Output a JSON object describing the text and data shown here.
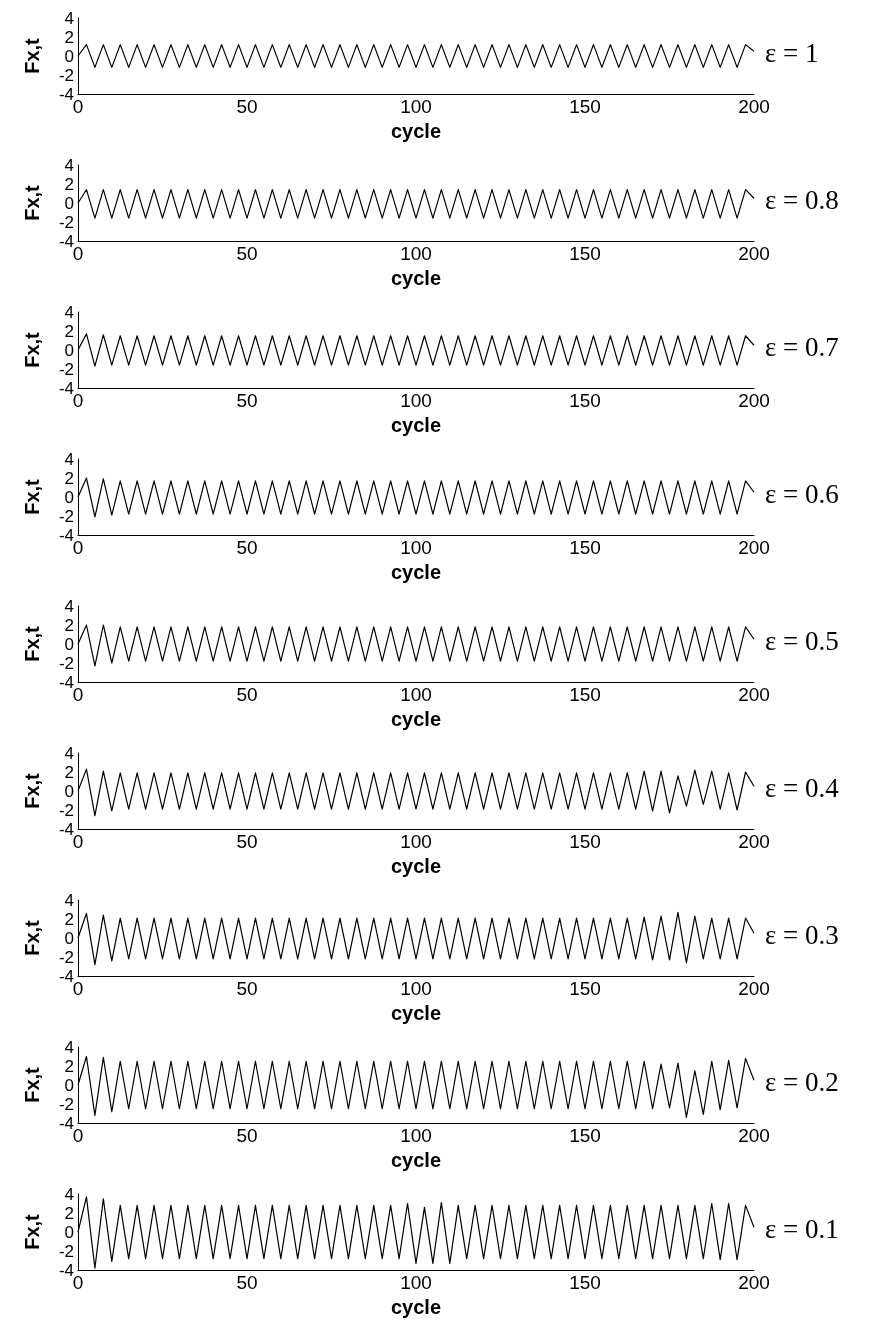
{
  "chart_data": [
    {
      "type": "line",
      "title": "ε = 1",
      "xlabel": "cycle",
      "ylabel": "Fx,t",
      "color": "#000000",
      "marker": "none",
      "xlim": [
        0,
        200
      ],
      "xticks": [
        0,
        50,
        100,
        150,
        200
      ],
      "ylim": [
        -4,
        4
      ],
      "yticks": [
        -4,
        -2,
        0,
        2,
        4
      ],
      "x": [
        0,
        2.5,
        5,
        7.5,
        10,
        12.5,
        15,
        17.5,
        20,
        22.5,
        25,
        27.5,
        30,
        32.5,
        35,
        37.5,
        40,
        42.5,
        45,
        47.5,
        50,
        52.5,
        55,
        57.5,
        60,
        62.5,
        65,
        67.5,
        70,
        72.5,
        75,
        77.5,
        80,
        82.5,
        85,
        87.5,
        90,
        92.5,
        95,
        97.5,
        100,
        102.5,
        105,
        107.5,
        110,
        112.5,
        115,
        117.5,
        120,
        122.5,
        125,
        127.5,
        130,
        132.5,
        135,
        137.5,
        140,
        142.5,
        145,
        147.5,
        150,
        152.5,
        155,
        157.5,
        160,
        162.5,
        165,
        167.5,
        170,
        172.5,
        175,
        177.5,
        180,
        182.5,
        185,
        187.5,
        190,
        192.5,
        195,
        197.5,
        200
      ],
      "values": [
        0,
        1.2,
        -1.2,
        1.2,
        -1.2,
        1.2,
        -1.2,
        1.2,
        -1.2,
        1.2,
        -1.2,
        1.2,
        -1.2,
        1.2,
        -1.2,
        1.2,
        -1.2,
        1.2,
        -1.2,
        1.2,
        -1.2,
        1.2,
        -1.2,
        1.2,
        -1.2,
        1.2,
        -1.2,
        1.2,
        -1.2,
        1.2,
        -1.2,
        1.2,
        -1.2,
        1.2,
        -1.2,
        1.2,
        -1.2,
        1.2,
        -1.2,
        1.2,
        -1.2,
        1.2,
        -1.2,
        1.2,
        -1.2,
        1.2,
        -1.2,
        1.2,
        -1.2,
        1.2,
        -1.2,
        1.2,
        -1.2,
        1.2,
        -1.2,
        1.2,
        -1.2,
        1.2,
        -1.2,
        1.2,
        -1.2,
        1.2,
        -1.2,
        1.2,
        -1.2,
        1.2,
        -1.2,
        1.2,
        -1.2,
        1.2,
        -1.2,
        1.2,
        -1.2,
        1.2,
        -1.2,
        1.2,
        -1.2,
        1.2,
        -1.2,
        1.2,
        0.5
      ]
    },
    {
      "type": "line",
      "title": "ε = 0.8",
      "xlabel": "cycle",
      "ylabel": "Fx,t",
      "color": "#000000",
      "marker": "none",
      "xlim": [
        0,
        200
      ],
      "xticks": [
        0,
        50,
        100,
        150,
        200
      ],
      "ylim": [
        -4,
        4
      ],
      "yticks": [
        -4,
        -2,
        0,
        2,
        4
      ],
      "x": [
        0,
        2.5,
        5,
        7.5,
        10,
        12.5,
        15,
        17.5,
        20,
        22.5,
        25,
        27.5,
        30,
        32.5,
        35,
        37.5,
        40,
        42.5,
        45,
        47.5,
        50,
        52.5,
        55,
        57.5,
        60,
        62.5,
        65,
        67.5,
        70,
        72.5,
        75,
        77.5,
        80,
        82.5,
        85,
        87.5,
        90,
        92.5,
        95,
        97.5,
        100,
        102.5,
        105,
        107.5,
        110,
        112.5,
        115,
        117.5,
        120,
        122.5,
        125,
        127.5,
        130,
        132.5,
        135,
        137.5,
        140,
        142.5,
        145,
        147.5,
        150,
        152.5,
        155,
        157.5,
        160,
        162.5,
        165,
        167.5,
        170,
        172.5,
        175,
        177.5,
        180,
        182.5,
        185,
        187.5,
        190,
        192.5,
        195,
        197.5,
        200
      ],
      "values": [
        0,
        1.4,
        -1.6,
        1.4,
        -1.6,
        1.4,
        -1.6,
        1.4,
        -1.6,
        1.4,
        -1.6,
        1.4,
        -1.6,
        1.4,
        -1.6,
        1.4,
        -1.6,
        1.4,
        -1.6,
        1.4,
        -1.6,
        1.4,
        -1.6,
        1.4,
        -1.6,
        1.4,
        -1.6,
        1.4,
        -1.6,
        1.4,
        -1.6,
        1.4,
        -1.6,
        1.4,
        -1.6,
        1.4,
        -1.6,
        1.4,
        -1.6,
        1.4,
        -1.6,
        1.4,
        -1.6,
        1.4,
        -1.6,
        1.4,
        -1.6,
        1.4,
        -1.6,
        1.4,
        -1.6,
        1.4,
        -1.6,
        1.4,
        -1.6,
        1.4,
        -1.6,
        1.4,
        -1.6,
        1.4,
        -1.6,
        1.4,
        -1.6,
        1.4,
        -1.6,
        1.4,
        -1.6,
        1.4,
        -1.6,
        1.4,
        -1.6,
        1.4,
        -1.6,
        1.4,
        -1.6,
        1.4,
        -1.6,
        1.4,
        -1.6,
        1.4,
        0.5
      ]
    },
    {
      "type": "line",
      "title": "ε = 0.7",
      "xlabel": "cycle",
      "ylabel": "Fx,t",
      "color": "#000000",
      "marker": "none",
      "xlim": [
        0,
        200
      ],
      "xticks": [
        0,
        50,
        100,
        150,
        200
      ],
      "ylim": [
        -4,
        4
      ],
      "yticks": [
        -4,
        -2,
        0,
        2,
        4
      ],
      "x": [
        0,
        2.5,
        5,
        7.5,
        10,
        12.5,
        15,
        17.5,
        20,
        22.5,
        25,
        27.5,
        30,
        32.5,
        35,
        37.5,
        40,
        42.5,
        45,
        47.5,
        50,
        52.5,
        55,
        57.5,
        60,
        62.5,
        65,
        67.5,
        70,
        72.5,
        75,
        77.5,
        80,
        82.5,
        85,
        87.5,
        90,
        92.5,
        95,
        97.5,
        100,
        102.5,
        105,
        107.5,
        110,
        112.5,
        115,
        117.5,
        120,
        122.5,
        125,
        127.5,
        130,
        132.5,
        135,
        137.5,
        140,
        142.5,
        145,
        147.5,
        150,
        152.5,
        155,
        157.5,
        160,
        162.5,
        165,
        167.5,
        170,
        172.5,
        175,
        177.5,
        180,
        182.5,
        185,
        187.5,
        190,
        192.5,
        195,
        197.5,
        200
      ],
      "values": [
        0,
        1.7,
        -1.7,
        1.6,
        -1.6,
        1.5,
        -1.6,
        1.5,
        -1.6,
        1.5,
        -1.6,
        1.5,
        -1.6,
        1.5,
        -1.6,
        1.5,
        -1.6,
        1.5,
        -1.6,
        1.5,
        -1.6,
        1.5,
        -1.6,
        1.5,
        -1.6,
        1.5,
        -1.6,
        1.5,
        -1.6,
        1.5,
        -1.6,
        1.5,
        -1.6,
        1.5,
        -1.6,
        1.5,
        -1.6,
        1.5,
        -1.6,
        1.5,
        -1.6,
        1.5,
        -1.6,
        1.5,
        -1.6,
        1.5,
        -1.6,
        1.5,
        -1.6,
        1.5,
        -1.6,
        1.5,
        -1.6,
        1.5,
        -1.6,
        1.5,
        -1.6,
        1.5,
        -1.6,
        1.5,
        -1.6,
        1.5,
        -1.6,
        1.5,
        -1.6,
        1.5,
        -1.6,
        1.5,
        -1.6,
        1.5,
        -1.6,
        1.5,
        -1.6,
        1.5,
        -1.6,
        1.5,
        -1.6,
        1.5,
        -1.6,
        1.5,
        0.5
      ]
    },
    {
      "type": "line",
      "title": "ε = 0.6",
      "xlabel": "cycle",
      "ylabel": "Fx,t",
      "color": "#000000",
      "marker": "none",
      "xlim": [
        0,
        200
      ],
      "xticks": [
        0,
        50,
        100,
        150,
        200
      ],
      "ylim": [
        -4,
        4
      ],
      "yticks": [
        -4,
        -2,
        0,
        2,
        4
      ],
      "x": [
        0,
        2.5,
        5,
        7.5,
        10,
        12.5,
        15,
        17.5,
        20,
        22.5,
        25,
        27.5,
        30,
        32.5,
        35,
        37.5,
        40,
        42.5,
        45,
        47.5,
        50,
        52.5,
        55,
        57.5,
        60,
        62.5,
        65,
        67.5,
        70,
        72.5,
        75,
        77.5,
        80,
        82.5,
        85,
        87.5,
        90,
        92.5,
        95,
        97.5,
        100,
        102.5,
        105,
        107.5,
        110,
        112.5,
        115,
        117.5,
        120,
        122.5,
        125,
        127.5,
        130,
        132.5,
        135,
        137.5,
        140,
        142.5,
        145,
        147.5,
        150,
        152.5,
        155,
        157.5,
        160,
        162.5,
        165,
        167.5,
        170,
        172.5,
        175,
        177.5,
        180,
        182.5,
        185,
        187.5,
        190,
        192.5,
        195,
        197.5,
        200
      ],
      "values": [
        0,
        2,
        -2.1,
        1.9,
        -1.9,
        1.7,
        -1.8,
        1.7,
        -1.8,
        1.7,
        -1.8,
        1.7,
        -1.8,
        1.7,
        -1.8,
        1.7,
        -1.8,
        1.7,
        -1.8,
        1.7,
        -1.8,
        1.7,
        -1.8,
        1.7,
        -1.8,
        1.7,
        -1.8,
        1.7,
        -1.8,
        1.7,
        -1.8,
        1.7,
        -1.8,
        1.7,
        -1.8,
        1.7,
        -1.8,
        1.7,
        -1.8,
        1.7,
        -1.8,
        1.7,
        -1.8,
        1.7,
        -1.8,
        1.7,
        -1.8,
        1.7,
        -1.8,
        1.7,
        -1.8,
        1.7,
        -1.8,
        1.7,
        -1.8,
        1.7,
        -1.8,
        1.7,
        -1.8,
        1.7,
        -1.8,
        1.7,
        -1.8,
        1.7,
        -1.8,
        1.7,
        -1.8,
        1.7,
        -1.8,
        1.7,
        -1.8,
        1.7,
        -1.8,
        1.7,
        -1.8,
        1.7,
        -1.8,
        1.7,
        -1.8,
        1.7,
        0.5
      ]
    },
    {
      "type": "line",
      "title": "ε = 0.5",
      "xlabel": "cycle",
      "ylabel": "Fx,t",
      "color": "#000000",
      "marker": "none",
      "xlim": [
        0,
        200
      ],
      "xticks": [
        0,
        50,
        100,
        150,
        200
      ],
      "ylim": [
        -4,
        4
      ],
      "yticks": [
        -4,
        -2,
        0,
        2,
        4
      ],
      "x": [
        0,
        2.5,
        5,
        7.5,
        10,
        12.5,
        15,
        17.5,
        20,
        22.5,
        25,
        27.5,
        30,
        32.5,
        35,
        37.5,
        40,
        42.5,
        45,
        47.5,
        50,
        52.5,
        55,
        57.5,
        60,
        62.5,
        65,
        67.5,
        70,
        72.5,
        75,
        77.5,
        80,
        82.5,
        85,
        87.5,
        90,
        92.5,
        95,
        97.5,
        100,
        102.5,
        105,
        107.5,
        110,
        112.5,
        115,
        117.5,
        120,
        122.5,
        125,
        127.5,
        130,
        132.5,
        135,
        137.5,
        140,
        142.5,
        145,
        147.5,
        150,
        152.5,
        155,
        157.5,
        160,
        162.5,
        165,
        167.5,
        170,
        172.5,
        175,
        177.5,
        180,
        182.5,
        185,
        187.5,
        190,
        192.5,
        195,
        197.5,
        200
      ],
      "values": [
        0,
        2,
        -2.3,
        2,
        -2,
        1.8,
        -1.8,
        1.8,
        -1.8,
        1.8,
        -1.8,
        1.8,
        -1.8,
        1.8,
        -1.8,
        1.8,
        -1.8,
        1.8,
        -1.8,
        1.8,
        -1.8,
        1.8,
        -1.8,
        1.8,
        -1.8,
        1.8,
        -1.8,
        1.8,
        -1.8,
        1.8,
        -1.8,
        1.8,
        -1.8,
        1.8,
        -1.8,
        1.8,
        -1.8,
        1.8,
        -1.8,
        1.8,
        -1.8,
        1.8,
        -1.8,
        1.8,
        -1.8,
        1.8,
        -1.8,
        1.8,
        -1.8,
        1.8,
        -1.8,
        1.8,
        -1.8,
        1.8,
        -1.8,
        1.8,
        -1.8,
        1.8,
        -1.8,
        1.8,
        -1.8,
        1.8,
        -1.8,
        1.8,
        -1.8,
        1.8,
        -1.8,
        1.8,
        -1.8,
        1.8,
        -1.8,
        1.8,
        -1.8,
        1.8,
        -1.8,
        1.8,
        -1.8,
        1.8,
        -1.8,
        1.8,
        0.5
      ]
    },
    {
      "type": "line",
      "title": "ε = 0.4",
      "xlabel": "cycle",
      "ylabel": "Fx,t",
      "color": "#000000",
      "marker": "none",
      "xlim": [
        0,
        200
      ],
      "xticks": [
        0,
        50,
        100,
        150,
        200
      ],
      "ylim": [
        -4,
        4
      ],
      "yticks": [
        -4,
        -2,
        0,
        2,
        4
      ],
      "x": [
        0,
        2.5,
        5,
        7.5,
        10,
        12.5,
        15,
        17.5,
        20,
        22.5,
        25,
        27.5,
        30,
        32.5,
        35,
        37.5,
        40,
        42.5,
        45,
        47.5,
        50,
        52.5,
        55,
        57.5,
        60,
        62.5,
        65,
        67.5,
        70,
        72.5,
        75,
        77.5,
        80,
        82.5,
        85,
        87.5,
        90,
        92.5,
        95,
        97.5,
        100,
        102.5,
        105,
        107.5,
        110,
        112.5,
        115,
        117.5,
        120,
        122.5,
        125,
        127.5,
        130,
        132.5,
        135,
        137.5,
        140,
        142.5,
        145,
        147.5,
        150,
        152.5,
        155,
        157.5,
        160,
        162.5,
        165,
        167.5,
        170,
        172.5,
        175,
        177.5,
        180,
        182.5,
        185,
        187.5,
        190,
        192.5,
        195,
        197.5,
        200
      ],
      "values": [
        0,
        2.3,
        -2.6,
        2.1,
        -2.1,
        1.9,
        -1.9,
        1.9,
        -1.9,
        1.9,
        -1.9,
        1.9,
        -1.9,
        1.9,
        -1.9,
        1.9,
        -1.9,
        1.9,
        -1.9,
        1.9,
        -1.9,
        1.9,
        -1.9,
        1.9,
        -1.9,
        1.9,
        -1.9,
        1.9,
        -1.9,
        1.9,
        -1.9,
        1.9,
        -1.9,
        1.9,
        -1.9,
        1.9,
        -1.9,
        1.9,
        -1.9,
        1.9,
        -1.9,
        1.9,
        -1.9,
        1.9,
        -1.9,
        1.9,
        -1.9,
        1.9,
        -1.9,
        1.9,
        -1.9,
        1.9,
        -1.9,
        1.9,
        -1.9,
        1.9,
        -1.9,
        1.9,
        -1.9,
        1.9,
        -1.9,
        1.9,
        -1.9,
        1.9,
        -1.9,
        1.9,
        -1.9,
        2.1,
        -2.1,
        2.1,
        -2.3,
        1.6,
        -1.6,
        2.2,
        -1.4,
        2.1,
        -1.9,
        1.9,
        -2,
        2,
        0.5
      ]
    },
    {
      "type": "line",
      "title": "ε = 0.3",
      "xlabel": "cycle",
      "ylabel": "Fx,t",
      "color": "#000000",
      "marker": "none",
      "xlim": [
        0,
        200
      ],
      "xticks": [
        0,
        50,
        100,
        150,
        200
      ],
      "ylim": [
        -4,
        4
      ],
      "yticks": [
        -4,
        -2,
        0,
        2,
        4
      ],
      "x": [
        0,
        2.5,
        5,
        7.5,
        10,
        12.5,
        15,
        17.5,
        20,
        22.5,
        25,
        27.5,
        30,
        32.5,
        35,
        37.5,
        40,
        42.5,
        45,
        47.5,
        50,
        52.5,
        55,
        57.5,
        60,
        62.5,
        65,
        67.5,
        70,
        72.5,
        75,
        77.5,
        80,
        82.5,
        85,
        87.5,
        90,
        92.5,
        95,
        97.5,
        100,
        102.5,
        105,
        107.5,
        110,
        112.5,
        115,
        117.5,
        120,
        122.5,
        125,
        127.5,
        130,
        132.5,
        135,
        137.5,
        140,
        142.5,
        145,
        147.5,
        150,
        152.5,
        155,
        157.5,
        160,
        162.5,
        165,
        167.5,
        170,
        172.5,
        175,
        177.5,
        180,
        182.5,
        185,
        187.5,
        190,
        192.5,
        195,
        197.5,
        200
      ],
      "values": [
        0,
        2.6,
        -2.8,
        2.4,
        -2.4,
        2.1,
        -2.2,
        2.1,
        -2.2,
        2.1,
        -2.2,
        2.1,
        -2.2,
        2.1,
        -2.2,
        2.1,
        -2.2,
        2.1,
        -2.2,
        2.1,
        -2.2,
        2.1,
        -2.2,
        2.1,
        -2.2,
        2.1,
        -2.2,
        2.1,
        -2.2,
        2.1,
        -2.2,
        2.1,
        -2.2,
        2.1,
        -2.2,
        2.1,
        -2.2,
        2.1,
        -2.2,
        2.1,
        -2.2,
        2.1,
        -2.2,
        2.1,
        -2.2,
        2.1,
        -2.2,
        2.1,
        -2.2,
        2.1,
        -2.2,
        2.1,
        -2.2,
        2.1,
        -2.2,
        2.1,
        -2.2,
        2.1,
        -2.2,
        2.1,
        -2.2,
        2.1,
        -2.2,
        2.1,
        -2.2,
        2.1,
        -2.2,
        2.2,
        -2.3,
        2.3,
        -2.3,
        2.7,
        -2.6,
        2.3,
        -2.2,
        2.1,
        -2.2,
        2.1,
        -2.2,
        2.1,
        0.5
      ]
    },
    {
      "type": "line",
      "title": "ε = 0.2",
      "xlabel": "cycle",
      "ylabel": "Fx,t",
      "color": "#000000",
      "marker": "none",
      "xlim": [
        0,
        200
      ],
      "xticks": [
        0,
        50,
        100,
        150,
        200
      ],
      "ylim": [
        -4,
        4
      ],
      "yticks": [
        -4,
        -2,
        0,
        2,
        4
      ],
      "x": [
        0,
        2.5,
        5,
        7.5,
        10,
        12.5,
        15,
        17.5,
        20,
        22.5,
        25,
        27.5,
        30,
        32.5,
        35,
        37.5,
        40,
        42.5,
        45,
        47.5,
        50,
        52.5,
        55,
        57.5,
        60,
        62.5,
        65,
        67.5,
        70,
        72.5,
        75,
        77.5,
        80,
        82.5,
        85,
        87.5,
        90,
        92.5,
        95,
        97.5,
        100,
        102.5,
        105,
        107.5,
        110,
        112.5,
        115,
        117.5,
        120,
        122.5,
        125,
        127.5,
        130,
        132.5,
        135,
        137.5,
        140,
        142.5,
        145,
        147.5,
        150,
        152.5,
        155,
        157.5,
        160,
        162.5,
        165,
        167.5,
        170,
        172.5,
        175,
        177.5,
        180,
        182.5,
        185,
        187.5,
        190,
        192.5,
        195,
        197.5,
        200
      ],
      "values": [
        0,
        3,
        -3.2,
        2.9,
        -2.8,
        2.5,
        -2.5,
        2.5,
        -2.5,
        2.5,
        -2.5,
        2.5,
        -2.5,
        2.5,
        -2.5,
        2.5,
        -2.5,
        2.5,
        -2.5,
        2.5,
        -2.5,
        2.5,
        -2.5,
        2.5,
        -2.5,
        2.5,
        -2.5,
        2.5,
        -2.5,
        2.5,
        -2.5,
        2.5,
        -2.5,
        2.5,
        -2.5,
        2.5,
        -2.5,
        2.5,
        -2.5,
        2.5,
        -2.5,
        2.5,
        -2.5,
        2.5,
        -2.5,
        2.5,
        -2.5,
        2.5,
        -2.5,
        2.5,
        -2.5,
        2.5,
        -2.5,
        2.5,
        -2.5,
        2.5,
        -2.5,
        2.5,
        -2.5,
        2.5,
        -2.5,
        2.5,
        -2.5,
        2.5,
        -2.5,
        2.5,
        -2.5,
        2.5,
        -2.5,
        2.2,
        -2.4,
        2.3,
        -3.4,
        1.5,
        -3.1,
        2.5,
        -2.6,
        2.6,
        -2.4,
        2.8,
        0.5
      ]
    },
    {
      "type": "line",
      "title": "ε = 0.1",
      "xlabel": "cycle",
      "ylabel": "Fx,t",
      "color": "#000000",
      "marker": "none",
      "xlim": [
        0,
        200
      ],
      "xticks": [
        0,
        50,
        100,
        150,
        200
      ],
      "ylim": [
        -4,
        4
      ],
      "yticks": [
        -4,
        -2,
        0,
        2,
        4
      ],
      "x": [
        0,
        2.5,
        5,
        7.5,
        10,
        12.5,
        15,
        17.5,
        20,
        22.5,
        25,
        27.5,
        30,
        32.5,
        35,
        37.5,
        40,
        42.5,
        45,
        47.5,
        50,
        52.5,
        55,
        57.5,
        60,
        62.5,
        65,
        67.5,
        70,
        72.5,
        75,
        77.5,
        80,
        82.5,
        85,
        87.5,
        90,
        92.5,
        95,
        97.5,
        100,
        102.5,
        105,
        107.5,
        110,
        112.5,
        115,
        117.5,
        120,
        122.5,
        125,
        127.5,
        130,
        132.5,
        135,
        137.5,
        140,
        142.5,
        145,
        147.5,
        150,
        152.5,
        155,
        157.5,
        160,
        162.5,
        165,
        167.5,
        170,
        172.5,
        175,
        177.5,
        180,
        182.5,
        185,
        187.5,
        190,
        192.5,
        195,
        197.5,
        200
      ],
      "values": [
        0,
        3.7,
        -3.8,
        3.5,
        -3.1,
        2.8,
        -2.8,
        2.8,
        -2.8,
        2.8,
        -2.8,
        2.8,
        -2.8,
        2.8,
        -2.8,
        2.8,
        -2.8,
        2.8,
        -2.8,
        2.8,
        -2.8,
        2.8,
        -2.8,
        2.8,
        -2.8,
        2.8,
        -2.8,
        2.8,
        -2.8,
        2.8,
        -2.8,
        2.8,
        -2.8,
        2.8,
        -2.8,
        2.8,
        -2.8,
        2.8,
        -2.8,
        3,
        -3.3,
        2.6,
        -3.3,
        3.1,
        -3.3,
        2.8,
        -2.8,
        2.8,
        -2.8,
        2.8,
        -2.8,
        2.8,
        -2.8,
        2.8,
        -2.8,
        2.8,
        -2.8,
        2.8,
        -2.8,
        2.8,
        -2.8,
        2.8,
        -2.8,
        2.8,
        -2.8,
        2.8,
        -2.8,
        2.8,
        -2.8,
        2.8,
        -2.8,
        2.8,
        -2.8,
        2.8,
        -2.8,
        3,
        -2.9,
        3,
        -2.9,
        2.8,
        0.5
      ]
    }
  ]
}
